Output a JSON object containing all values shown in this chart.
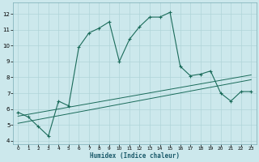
{
  "title": "",
  "xlabel": "Humidex (Indice chaleur)",
  "ylabel": "",
  "xlim": [
    -0.5,
    23.5
  ],
  "ylim": [
    3.8,
    12.7
  ],
  "yticks": [
    4,
    5,
    6,
    7,
    8,
    9,
    10,
    11,
    12
  ],
  "xticks": [
    0,
    1,
    2,
    3,
    4,
    5,
    6,
    7,
    8,
    9,
    10,
    11,
    12,
    13,
    14,
    15,
    16,
    17,
    18,
    19,
    20,
    21,
    22,
    23
  ],
  "background_color": "#cce8ec",
  "grid_color": "#b0d4d8",
  "line_color": "#1a6b5a",
  "line1_x": [
    0,
    1,
    2,
    3,
    4,
    5,
    6,
    7,
    8,
    9,
    10,
    11,
    12,
    13,
    14,
    15,
    16,
    17,
    18,
    19,
    20,
    21,
    22,
    23
  ],
  "line1_y": [
    5.8,
    5.5,
    4.9,
    4.3,
    6.5,
    6.2,
    9.9,
    10.8,
    11.1,
    11.5,
    9.0,
    10.4,
    11.2,
    11.8,
    11.8,
    12.1,
    8.7,
    8.1,
    8.2,
    8.4,
    7.0,
    6.5,
    7.1,
    7.1
  ],
  "line2_x": [
    0,
    23
  ],
  "line2_y": [
    5.1,
    7.85
  ],
  "line3_x": [
    0,
    23
  ],
  "line3_y": [
    5.55,
    8.15
  ]
}
